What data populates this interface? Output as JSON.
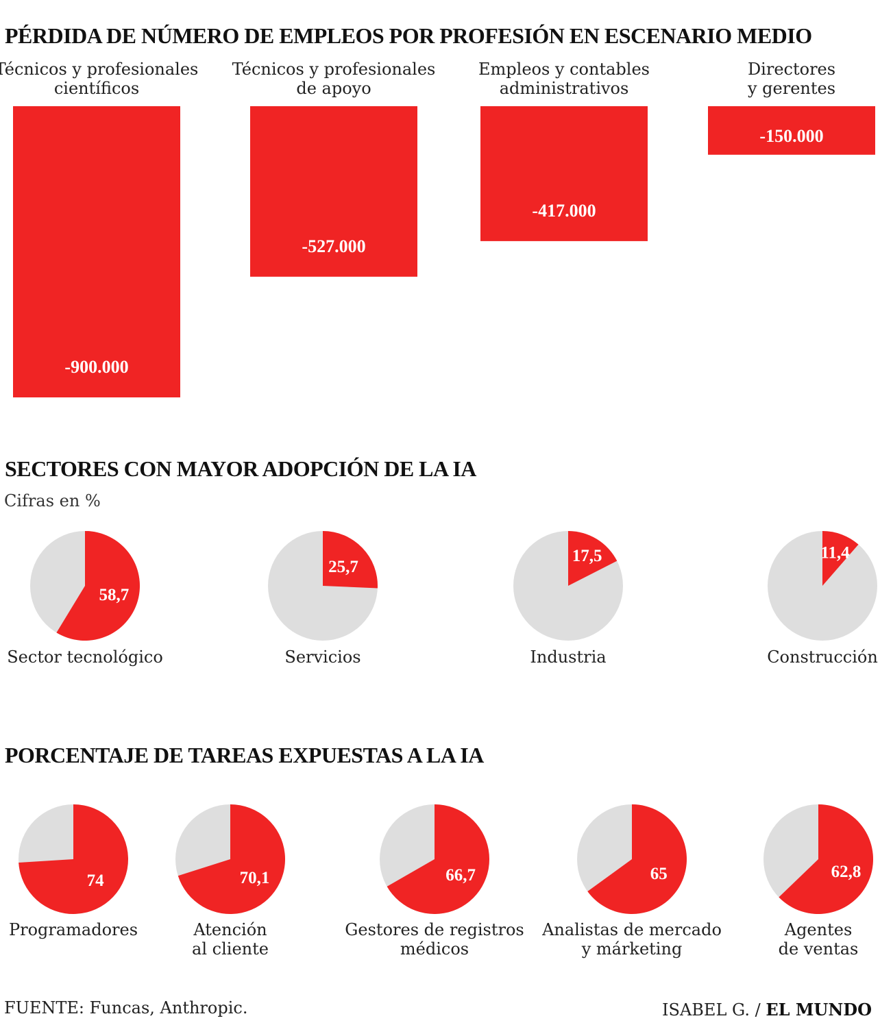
{
  "colors": {
    "accent": "#f02424",
    "remainder": "#dedede",
    "label_on_red": "#ffffff",
    "text": "#222222"
  },
  "sections": {
    "jobs_title": "PÉRDIDA DE NÚMERO DE EMPLEOS POR PROFESIÓN EN ESCENARIO MEDIO",
    "sectors_title": "SECTORES CON MAYOR ADOPCIÓN DE LA IA",
    "sectors_unit": "Cifras en %",
    "tasks_title": "PORCENTAJE DE TAREAS EXPUESTAS A LA IA"
  },
  "chart_data": [
    {
      "type": "bar",
      "title": "PÉRDIDA DE NÚMERO DE EMPLEOS POR PROFESIÓN EN ESCENARIO MEDIO",
      "categories": [
        [
          "Técnicos y profesionales",
          "científicos"
        ],
        [
          "Técnicos y profesionales",
          "de apoyo"
        ],
        [
          "Empleos y contables",
          "administrativos"
        ],
        [
          "Directores",
          "y gerentes"
        ]
      ],
      "values": [
        -900000,
        -527000,
        -417000,
        -150000
      ],
      "value_labels": [
        "-900.000",
        "-527.000",
        "-417.000",
        "-150.000"
      ],
      "ylim": [
        -900000,
        0
      ],
      "grid": false
    },
    {
      "type": "pie",
      "title": "SECTORES CON MAYOR ADOPCIÓN DE LA IA",
      "subtitle": "Cifras en %",
      "categories": [
        [
          "Sector tecnológico"
        ],
        [
          "Servicios"
        ],
        [
          "Industria"
        ],
        [
          "Construcción"
        ]
      ],
      "values": [
        58.7,
        25.7,
        17.5,
        11.4
      ],
      "value_labels": [
        "58,7",
        "25,7",
        "17,5",
        "11,4"
      ],
      "total": 100
    },
    {
      "type": "pie",
      "title": "PORCENTAJE DE TAREAS EXPUESTAS A LA IA",
      "categories": [
        [
          "Programadores"
        ],
        [
          "Atención",
          "al cliente"
        ],
        [
          "Gestores de registros",
          "médicos"
        ],
        [
          "Analistas de mercado",
          "y márketing"
        ],
        [
          "Agentes",
          "de ventas"
        ]
      ],
      "values": [
        74,
        70.1,
        66.7,
        65,
        62.8
      ],
      "value_labels": [
        "74",
        "70,1",
        "66,7",
        "65",
        "62,8"
      ],
      "total": 100
    }
  ],
  "footer": {
    "source": "FUENTE: Funcas, Anthropic.",
    "author": "ISABEL G. /",
    "brand": "EL MUNDO"
  }
}
